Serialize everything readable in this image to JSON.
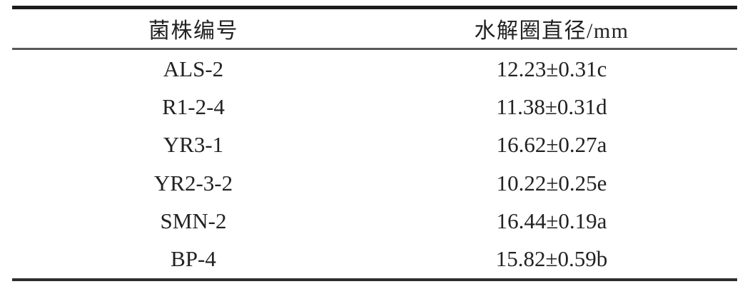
{
  "table": {
    "columns": [
      {
        "label": "菌株编号"
      },
      {
        "label": "水解圈直径/mm"
      }
    ],
    "rows": [
      {
        "strain": "ALS-2",
        "diameter": "12.23±0.31c"
      },
      {
        "strain": "R1-2-4",
        "diameter": "11.38±0.31d"
      },
      {
        "strain": "YR3-1",
        "diameter": "16.62±0.27a"
      },
      {
        "strain": "YR2-3-2",
        "diameter": "10.22±0.25e"
      },
      {
        "strain": "SMN-2",
        "diameter": "16.44±0.19a"
      },
      {
        "strain": "BP-4",
        "diameter": "15.82±0.59b"
      }
    ],
    "colors": {
      "rule_top": "#1c1c1c",
      "rule_header": "#595959",
      "rule_bottom": "#2e2e2e",
      "text": "#222222"
    }
  }
}
